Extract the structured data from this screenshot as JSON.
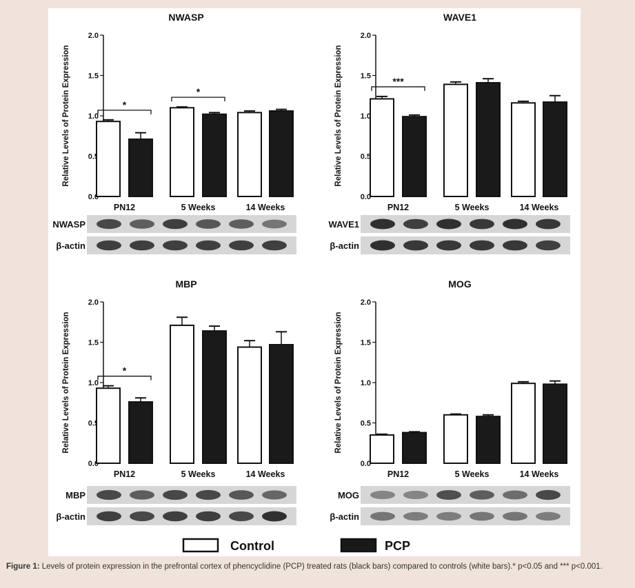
{
  "figure": {
    "legend": {
      "control_label": "Control",
      "pcp_label": "PCP"
    }
  },
  "caption": {
    "label": "Figure 1:",
    "text": "Levels of protein expression in the prefrontal cortex of phencyclidine (PCP) treated rats (black bars) compared to controls (white bars).* p<0.05 and *** p<0.001."
  },
  "colors": {
    "control_fill": "#ffffff",
    "pcp_fill": "#1a1a1a",
    "page_background": "#f0e3dc",
    "panel_background": "#ffffff"
  },
  "chart_data": [
    {
      "type": "bar",
      "title": "NWASP",
      "ylabel": "Relative Levels of Protein Expression",
      "ylim": [
        0,
        2.0
      ],
      "yticks": [
        "0.0",
        "0.5",
        "1.0",
        "1.5",
        "2.0"
      ],
      "categories": [
        "PN12",
        "5 Weeks",
        "14 Weeks"
      ],
      "series": [
        {
          "name": "Control",
          "values": [
            0.93,
            1.1,
            1.04
          ],
          "errors": [
            0.02,
            0.01,
            0.02
          ]
        },
        {
          "name": "PCP",
          "values": [
            0.71,
            1.02,
            1.06
          ],
          "errors": [
            0.08,
            0.02,
            0.02
          ]
        }
      ],
      "significance": [
        {
          "category": "PN12",
          "label": "*"
        },
        {
          "category": "5 Weeks",
          "label": "*"
        }
      ],
      "blots": [
        {
          "label": "NWASP",
          "intensity": [
            0.85,
            0.7,
            0.9,
            0.75,
            0.7,
            0.55
          ]
        },
        {
          "label": "β-actin",
          "intensity": [
            0.9,
            0.9,
            0.9,
            0.9,
            0.9,
            0.9
          ]
        }
      ]
    },
    {
      "type": "bar",
      "title": "WAVE1",
      "ylabel": "Relative Levels of Protein Expression",
      "ylim": [
        0,
        2.0
      ],
      "yticks": [
        "0.0",
        "0.5",
        "1.0",
        "1.5",
        "2.0"
      ],
      "categories": [
        "PN12",
        "5 Weeks",
        "14 Weeks"
      ],
      "series": [
        {
          "name": "Control",
          "values": [
            1.21,
            1.39,
            1.16
          ],
          "errors": [
            0.03,
            0.03,
            0.02
          ]
        },
        {
          "name": "PCP",
          "values": [
            0.99,
            1.41,
            1.17
          ],
          "errors": [
            0.02,
            0.05,
            0.08
          ]
        }
      ],
      "significance": [
        {
          "category": "PN12",
          "label": "***"
        }
      ],
      "blots": [
        {
          "label": "WAVE1",
          "intensity": [
            1.0,
            0.9,
            1.0,
            0.95,
            1.0,
            0.95
          ]
        },
        {
          "label": "β-actin",
          "intensity": [
            1.0,
            0.95,
            0.95,
            0.95,
            0.95,
            0.9
          ]
        }
      ]
    },
    {
      "type": "bar",
      "title": "MBP",
      "ylabel": "Relative Levels of Protein Expression",
      "ylim": [
        0,
        2.0
      ],
      "yticks": [
        "0.0",
        "0.5",
        "1.0",
        "1.5",
        "2.0"
      ],
      "categories": [
        "PN12",
        "5 Weeks",
        "14 Weeks"
      ],
      "series": [
        {
          "name": "Control",
          "values": [
            0.93,
            1.71,
            1.44
          ],
          "errors": [
            0.03,
            0.1,
            0.08
          ]
        },
        {
          "name": "PCP",
          "values": [
            0.76,
            1.64,
            1.47
          ],
          "errors": [
            0.05,
            0.06,
            0.16
          ]
        }
      ],
      "significance": [
        {
          "category": "PN12",
          "label": "*"
        }
      ],
      "blots": [
        {
          "label": "MBP",
          "intensity": [
            0.85,
            0.7,
            0.85,
            0.85,
            0.75,
            0.65
          ]
        },
        {
          "label": "β-actin",
          "intensity": [
            0.9,
            0.85,
            0.9,
            0.9,
            0.85,
            1.0
          ]
        }
      ]
    },
    {
      "type": "bar",
      "title": "MOG",
      "ylabel": "Relative Levels of Protein Expression",
      "ylim": [
        0,
        2.0
      ],
      "yticks": [
        "0.0",
        "0.5",
        "1.0",
        "1.5",
        "2.0"
      ],
      "categories": [
        "PN12",
        "5 Weeks",
        "14 Weeks"
      ],
      "series": [
        {
          "name": "Control",
          "values": [
            0.35,
            0.6,
            0.99
          ],
          "errors": [
            0.01,
            0.01,
            0.02
          ]
        },
        {
          "name": "PCP",
          "values": [
            0.38,
            0.58,
            0.98
          ],
          "errors": [
            0.01,
            0.02,
            0.04
          ]
        }
      ],
      "significance": [],
      "blots": [
        {
          "label": "MOG",
          "intensity": [
            0.45,
            0.45,
            0.8,
            0.7,
            0.6,
            0.85
          ]
        },
        {
          "label": "β-actin",
          "intensity": [
            0.55,
            0.5,
            0.5,
            0.55,
            0.55,
            0.5
          ]
        }
      ]
    }
  ]
}
